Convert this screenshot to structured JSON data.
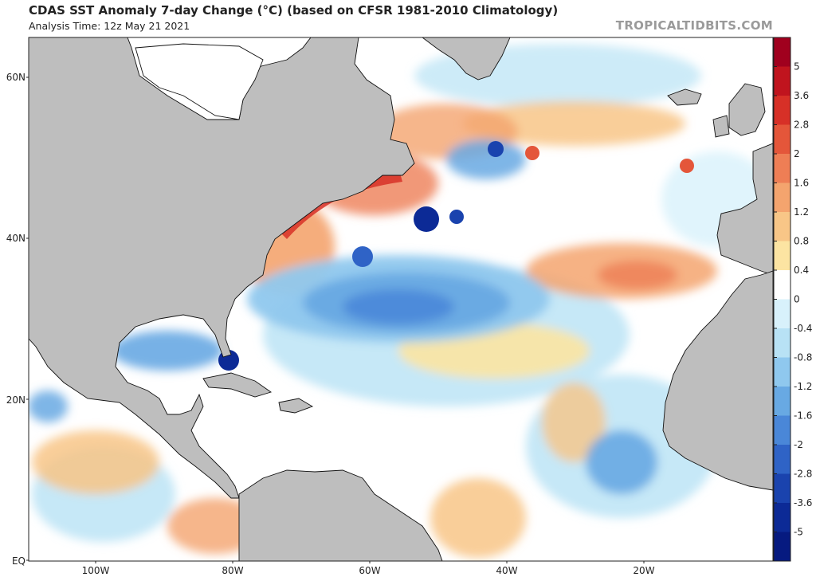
{
  "header": {
    "title": "CDAS SST Anomaly 7-day Change (°C) (based on CFSR 1981-2010 Climatology)",
    "analysis_time": "Analysis Time: 12z May 21 2021",
    "brand": "TROPICALTIDBITS.COM"
  },
  "map": {
    "lat_labels": [
      "60N",
      "40N",
      "20N",
      "EQ"
    ],
    "lon_labels": [
      "100W",
      "80W",
      "60W",
      "40W",
      "20W"
    ],
    "land_color": "#bebebe",
    "ocean_color": "#ffffff"
  },
  "colorbar": {
    "ticks": [
      "5",
      "3.6",
      "2.8",
      "2",
      "1.6",
      "1.2",
      "0.8",
      "0.4",
      "0",
      "-0.4",
      "-0.8",
      "-1.2",
      "-1.6",
      "-2",
      "-2.8",
      "-3.6",
      "-5"
    ],
    "colors": [
      "#a0001e",
      "#c0141e",
      "#d73027",
      "#e4563a",
      "#ee7e55",
      "#f4a46e",
      "#f8c687",
      "#fce4a2",
      "#ffffff",
      "#d8f1fb",
      "#b8e2f5",
      "#8fc8ee",
      "#68a9e3",
      "#4a87d8",
      "#2f63c6",
      "#1a43ae",
      "#0c2a96",
      "#061a80"
    ]
  }
}
